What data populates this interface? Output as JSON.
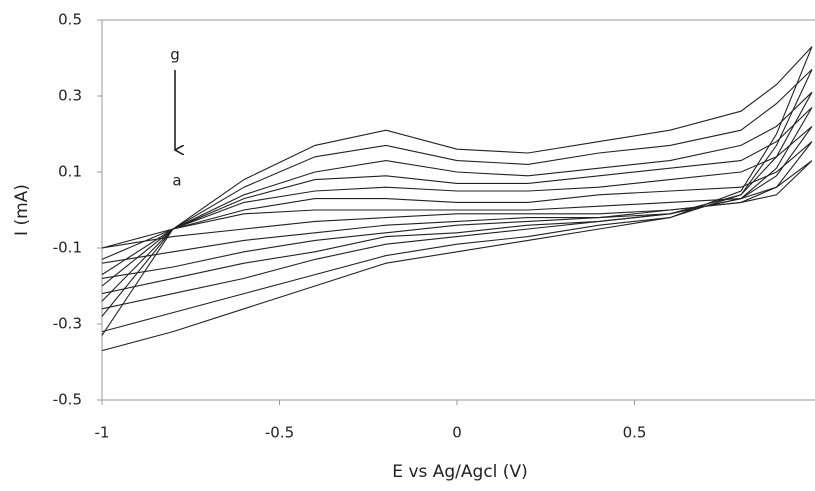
{
  "chart_data": {
    "type": "line",
    "x_label": "E vs Ag/Agcl (V)",
    "y_label": "I (mA)",
    "annotations": [
      "g",
      "a"
    ],
    "x": [
      -1,
      -0.8,
      -0.6,
      -0.4,
      -0.2,
      0,
      0.2,
      0.4,
      0.6,
      0.8,
      0.9,
      1,
      0.9,
      0.8,
      0.6,
      0.4,
      0.2,
      0,
      -0.2,
      -0.4,
      -0.6,
      -0.8,
      -1
    ],
    "series": [
      {
        "color": "#222222",
        "values": [
          -0.1,
          -0.05,
          -0.01,
          0.0,
          0.0,
          0.0,
          0.0,
          0.01,
          0.02,
          0.03,
          0.06,
          0.13,
          0.04,
          0.02,
          0.0,
          -0.01,
          -0.01,
          -0.01,
          -0.02,
          -0.03,
          -0.05,
          -0.07,
          -0.1
        ]
      },
      {
        "color": "#222222",
        "values": [
          -0.13,
          -0.05,
          0,
          0.03,
          0.03,
          0.02,
          0.02,
          0.04,
          0.05,
          0.06,
          0.1,
          0.18,
          0.06,
          0.02,
          0,
          -0.02,
          -0.02,
          -0.03,
          -0.04,
          -0.06,
          -0.08,
          -0.11,
          -0.14
        ]
      },
      {
        "color": "#222222",
        "values": [
          -0.17,
          -0.05,
          0.02,
          0.05,
          0.06,
          0.05,
          0.05,
          0.06,
          0.08,
          0.1,
          0.14,
          0.22,
          0.09,
          0.03,
          -0.01,
          -0.02,
          -0.03,
          -0.04,
          -0.06,
          -0.08,
          -0.11,
          -0.15,
          -0.18
        ]
      },
      {
        "color": "#222222",
        "values": [
          -0.2,
          -0.05,
          0.03,
          0.08,
          0.09,
          0.07,
          0.07,
          0.09,
          0.11,
          0.13,
          0.18,
          0.27,
          0.11,
          0.03,
          -0.01,
          -0.03,
          -0.04,
          -0.06,
          -0.07,
          -0.11,
          -0.14,
          -0.18,
          -0.22
        ]
      },
      {
        "color": "#222222",
        "values": [
          -0.24,
          -0.05,
          0.04,
          0.1,
          0.13,
          0.1,
          0.09,
          0.11,
          0.13,
          0.17,
          0.22,
          0.31,
          0.14,
          0.04,
          -0.01,
          -0.03,
          -0.05,
          -0.07,
          -0.09,
          -0.13,
          -0.18,
          -0.22,
          -0.26
        ]
      },
      {
        "color": "#222222",
        "values": [
          -0.28,
          -0.05,
          0.06,
          0.14,
          0.17,
          0.13,
          0.12,
          0.15,
          0.17,
          0.21,
          0.28,
          0.37,
          0.17,
          0.04,
          -0.02,
          -0.04,
          -0.07,
          -0.09,
          -0.12,
          -0.17,
          -0.22,
          -0.27,
          -0.32
        ]
      },
      {
        "color": "#222222",
        "values": [
          -0.33,
          -0.05,
          0.08,
          0.17,
          0.21,
          0.16,
          0.15,
          0.18,
          0.21,
          0.26,
          0.33,
          0.43,
          0.2,
          0.05,
          -0.02,
          -0.05,
          -0.08,
          -0.11,
          -0.14,
          -0.2,
          -0.26,
          -0.32,
          -0.37
        ]
      }
    ],
    "xlim": [
      -1,
      1
    ],
    "xticks": [
      -1,
      -0.5,
      0,
      0.5
    ],
    "ylim": [
      -0.5,
      0.5
    ],
    "yticks": [
      0.5,
      0.3,
      0.1,
      -0.1,
      -0.3,
      -0.5
    ],
    "grid": false
  }
}
